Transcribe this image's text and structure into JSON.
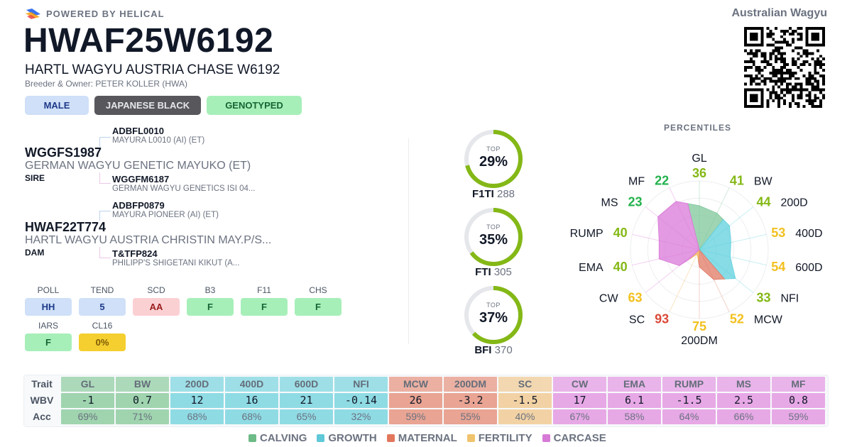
{
  "header": {
    "powered_by": "POWERED BY HELICAL",
    "animal_id": "HWAF25W6192",
    "animal_name": "HARTL WAGYU AUSTRIA CHASE W6192",
    "breeder_owner": "Breeder & Owner: PETER KOLLER (HWA)",
    "registry": "Australian Wagyu",
    "badges": {
      "sex": "MALE",
      "breed": "JAPANESE BLACK",
      "genotype": "GENOTYPED"
    }
  },
  "pedigree": {
    "sire": {
      "role": "SIRE",
      "id": "WGGFS1987",
      "name": "GERMAN WAGYU GENETIC MAYUKO (ET)",
      "sire": {
        "id": "ADBFL0010",
        "name": "MAYURA L0010 (AI) (ET)"
      },
      "dam": {
        "id": "WGGFM6187",
        "name": "GERMAN WAGYU GENETICS ISI 04..."
      }
    },
    "dam": {
      "role": "DAM",
      "id": "HWAF22T774",
      "name": "HARTL WAGYU AUSTRIA CHRISTIN MAY.P/S...",
      "sire": {
        "id": "ADBFP0879",
        "name": "MAYURA PIONEER (AI) (ET)"
      },
      "dam": {
        "id": "T&TFP824",
        "name": "PHILIPP'S SHIGETANI KIKUT (A..."
      }
    }
  },
  "genetic_tests": [
    {
      "label": "POLL",
      "value": "HH",
      "bg": "#cfe0f8",
      "fg": "#1e3a8a"
    },
    {
      "label": "TEND",
      "value": "5",
      "bg": "#cfe0f8",
      "fg": "#1e3a8a"
    },
    {
      "label": "SCD",
      "value": "AA",
      "bg": "#fbd0d3",
      "fg": "#991b1b"
    },
    {
      "label": "B3",
      "value": "F",
      "bg": "#a7efb9",
      "fg": "#166534"
    },
    {
      "label": "F11",
      "value": "F",
      "bg": "#a7efb9",
      "fg": "#166534"
    },
    {
      "label": "CHS",
      "value": "F",
      "bg": "#a7efb9",
      "fg": "#166534"
    },
    {
      "label": "IARS",
      "value": "F",
      "bg": "#a7efb9",
      "fg": "#166534"
    },
    {
      "label": "CL16",
      "value": "0%",
      "bg": "#f4cf2f",
      "fg": "#7c5a06"
    }
  ],
  "indexes": [
    {
      "top_label": "TOP",
      "percent": "29%",
      "fill": 0.71,
      "name": "F1TI",
      "value": "288"
    },
    {
      "top_label": "TOP",
      "percent": "35%",
      "fill": 0.65,
      "name": "FTI",
      "value": "305"
    },
    {
      "top_label": "TOP",
      "percent": "37%",
      "fill": 0.63,
      "name": "BFI",
      "value": "370"
    }
  ],
  "index_colors": {
    "fill": "#84b816",
    "track": "#e5e7eb"
  },
  "percentiles_title": "PERCENTILES",
  "chart_data": {
    "type": "radar",
    "title": "PERCENTILES",
    "axes": [
      "GL",
      "BW",
      "200D",
      "400D",
      "600D",
      "NFI",
      "MCW",
      "200DM",
      "SC",
      "CW",
      "EMA",
      "RUMP",
      "MS",
      "MF"
    ],
    "percentiles": [
      36,
      41,
      44,
      53,
      54,
      33,
      52,
      75,
      93,
      63,
      40,
      40,
      23,
      22
    ],
    "groups": [
      "calving",
      "calving",
      "growth",
      "growth",
      "growth",
      "growth",
      "maternal",
      "maternal",
      "fertility",
      "carcase",
      "carcase",
      "carcase",
      "carcase",
      "carcase"
    ],
    "scale": "radius = (100 - percentile) / 100",
    "rings": 4
  },
  "trait_table": {
    "row_labels": {
      "trait": "Trait",
      "wbv": "WBV",
      "acc": "Acc"
    },
    "traits": [
      {
        "trait": "GL",
        "wbv": "-1",
        "acc": "69%",
        "group": "calving"
      },
      {
        "trait": "BW",
        "wbv": "0.7",
        "acc": "71%",
        "group": "calving"
      },
      {
        "trait": "200D",
        "wbv": "12",
        "acc": "68%",
        "group": "growth"
      },
      {
        "trait": "400D",
        "wbv": "16",
        "acc": "68%",
        "group": "growth"
      },
      {
        "trait": "600D",
        "wbv": "21",
        "acc": "65%",
        "group": "growth"
      },
      {
        "trait": "NFI",
        "wbv": "-0.14",
        "acc": "32%",
        "group": "growth"
      },
      {
        "trait": "MCW",
        "wbv": "26",
        "acc": "59%",
        "group": "maternal"
      },
      {
        "trait": "200DM",
        "wbv": "-3.2",
        "acc": "55%",
        "group": "maternal"
      },
      {
        "trait": "SC",
        "wbv": "-1.5",
        "acc": "40%",
        "group": "fertility"
      },
      {
        "trait": "CW",
        "wbv": "17",
        "acc": "67%",
        "group": "carcase"
      },
      {
        "trait": "EMA",
        "wbv": "6.1",
        "acc": "58%",
        "group": "carcase"
      },
      {
        "trait": "RUMP",
        "wbv": "-1.5",
        "acc": "64%",
        "group": "carcase"
      },
      {
        "trait": "MS",
        "wbv": "2.5",
        "acc": "66%",
        "group": "carcase"
      },
      {
        "trait": "MF",
        "wbv": "0.8",
        "acc": "59%",
        "group": "carcase"
      }
    ]
  },
  "groups": {
    "calving": {
      "label": "CALVING",
      "color": "#7fc79a",
      "cell": "#9fd4af",
      "legend": "#6dbb86"
    },
    "growth": {
      "label": "GROWTH",
      "color": "#5fd0de",
      "cell": "#8fdbe4",
      "legend": "#5fc9d8"
    },
    "maternal": {
      "label": "MATERNAL",
      "color": "#e07a64",
      "cell": "#e9a493",
      "legend": "#e2775e"
    },
    "fertility": {
      "label": "FERTILITY",
      "color": "#f2b35a",
      "cell": "#f2d2a4",
      "legend": "#f0c36e"
    },
    "carcase": {
      "label": "CARCASE",
      "color": "#d978d8",
      "cell": "#e7a8e6",
      "legend": "#d77ad6"
    }
  },
  "legend_order": [
    "calving",
    "growth",
    "maternal",
    "fertility",
    "carcase"
  ]
}
